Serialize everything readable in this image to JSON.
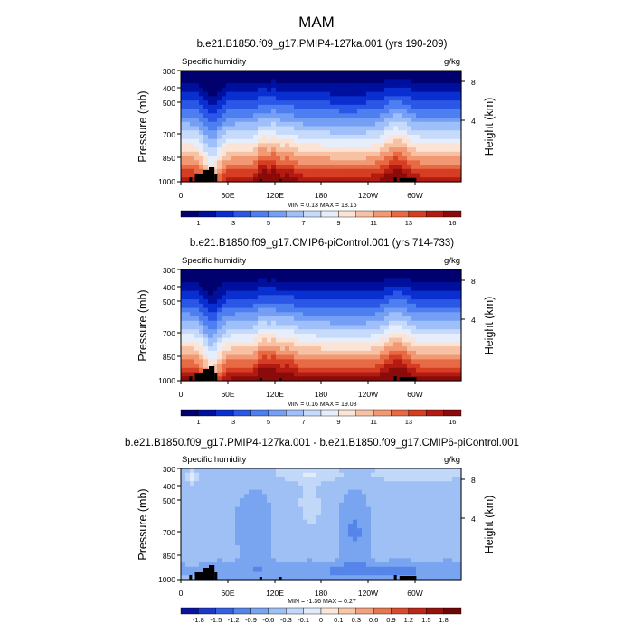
{
  "figure": {
    "title": "MAM"
  },
  "colors": {
    "full_palette": [
      "#00006e",
      "#00109e",
      "#0a2fd0",
      "#2a57e6",
      "#4d7ff0",
      "#749ff5",
      "#9ebff9",
      "#c6dbfc",
      "#e6eefc",
      "#fbe3d5",
      "#f7c1a4",
      "#f29872",
      "#e86a44",
      "#d63e23",
      "#b31b12",
      "#8a0b0a"
    ],
    "diff_palette": [
      "#0a12a0",
      "#1c38cc",
      "#3560e0",
      "#5685ea",
      "#79a4f0",
      "#9fc0f5",
      "#c2d8f9",
      "#e0ebfb",
      "#fbe6d8",
      "#f7c7aa",
      "#f1a17d",
      "#e67550",
      "#d84a2e",
      "#bd2717",
      "#96110c",
      "#6e0606"
    ],
    "terrain": "#000000"
  },
  "panels": [
    {
      "title": "b.e21.B1850.f09_g17.PMIP4-127ka.001 (yrs 190-209)",
      "variable": "Specific humidity",
      "units": "g/kg",
      "ylabel": "Pressure (mb)",
      "ylabel_right": "Height (km)",
      "minmax_text": "MIN =    0.13  MAX =   18.16",
      "kind": "full"
    },
    {
      "title": "b.e21.B1850.f09_g17.CMIP6-piControl.001 (yrs 714-733)",
      "variable": "Specific humidity",
      "units": "g/kg",
      "ylabel": "Pressure (mb)",
      "ylabel_right": "Height (km)",
      "minmax_text": "MIN =    0.16  MAX =   19.08",
      "kind": "full"
    },
    {
      "title": "b.e21.B1850.f09_g17.PMIP4-127ka.001 - b.e21.B1850.f09_g17.CMIP6-piControl.001",
      "variable": "Specific humidity",
      "units": "g/kg",
      "ylabel": "Pressure (mb)",
      "ylabel_right": "Height (km)",
      "minmax_text": "MIN =   -1.36  MAX =    0.27",
      "kind": "diff"
    }
  ],
  "chart_data": [
    {
      "type": "heatmap",
      "title": "b.e21.B1850.f09_g17.PMIP4-127ka.001 (yrs 190-209)",
      "subtitle": "Specific humidity",
      "units": "g/kg",
      "ylabel": "Pressure (mb)",
      "ylabel_right": "Height (km)",
      "x_ticks": [
        "0",
        "60E",
        "120E",
        "180",
        "120W",
        "60W"
      ],
      "y_ticks": [
        "300",
        "400",
        "500",
        "700",
        "850",
        "1000"
      ],
      "y_ticks_right": [
        "8",
        "4"
      ],
      "ylim": [
        1000,
        300
      ],
      "y_scale": "log-pressure",
      "colorbar_labels": [
        "1",
        "3",
        "5",
        "7",
        "9",
        "11",
        "13",
        "16"
      ],
      "min": 0.13,
      "max": 18.16
    },
    {
      "type": "heatmap",
      "title": "b.e21.B1850.f09_g17.CMIP6-piControl.001 (yrs 714-733)",
      "subtitle": "Specific humidity",
      "units": "g/kg",
      "ylabel": "Pressure (mb)",
      "ylabel_right": "Height (km)",
      "x_ticks": [
        "0",
        "60E",
        "120E",
        "180",
        "120W",
        "60W"
      ],
      "y_ticks": [
        "300",
        "400",
        "500",
        "700",
        "850",
        "1000"
      ],
      "y_ticks_right": [
        "8",
        "4"
      ],
      "ylim": [
        1000,
        300
      ],
      "y_scale": "log-pressure",
      "colorbar_labels": [
        "1",
        "3",
        "5",
        "7",
        "9",
        "11",
        "13",
        "16"
      ],
      "min": 0.16,
      "max": 19.08
    },
    {
      "type": "heatmap",
      "title": "b.e21.B1850.f09_g17.PMIP4-127ka.001 - b.e21.B1850.f09_g17.CMIP6-piControl.001",
      "subtitle": "Specific humidity",
      "units": "g/kg",
      "ylabel": "Pressure (mb)",
      "ylabel_right": "Height (km)",
      "x_ticks": [
        "0",
        "60E",
        "120E",
        "180",
        "120W",
        "60W"
      ],
      "y_ticks": [
        "300",
        "400",
        "500",
        "700",
        "850",
        "1000"
      ],
      "y_ticks_right": [
        "8",
        "4"
      ],
      "ylim": [
        1000,
        300
      ],
      "y_scale": "log-pressure",
      "colorbar_labels": [
        "-1.8",
        "-1.5",
        "-1.2",
        "-0.9",
        "-0.6",
        "-0.3",
        "-0.1",
        "0",
        "0.1",
        "0.3",
        "0.6",
        "0.9",
        "1.2",
        "1.5",
        "1.8"
      ],
      "min": -1.36,
      "max": 0.27
    }
  ]
}
